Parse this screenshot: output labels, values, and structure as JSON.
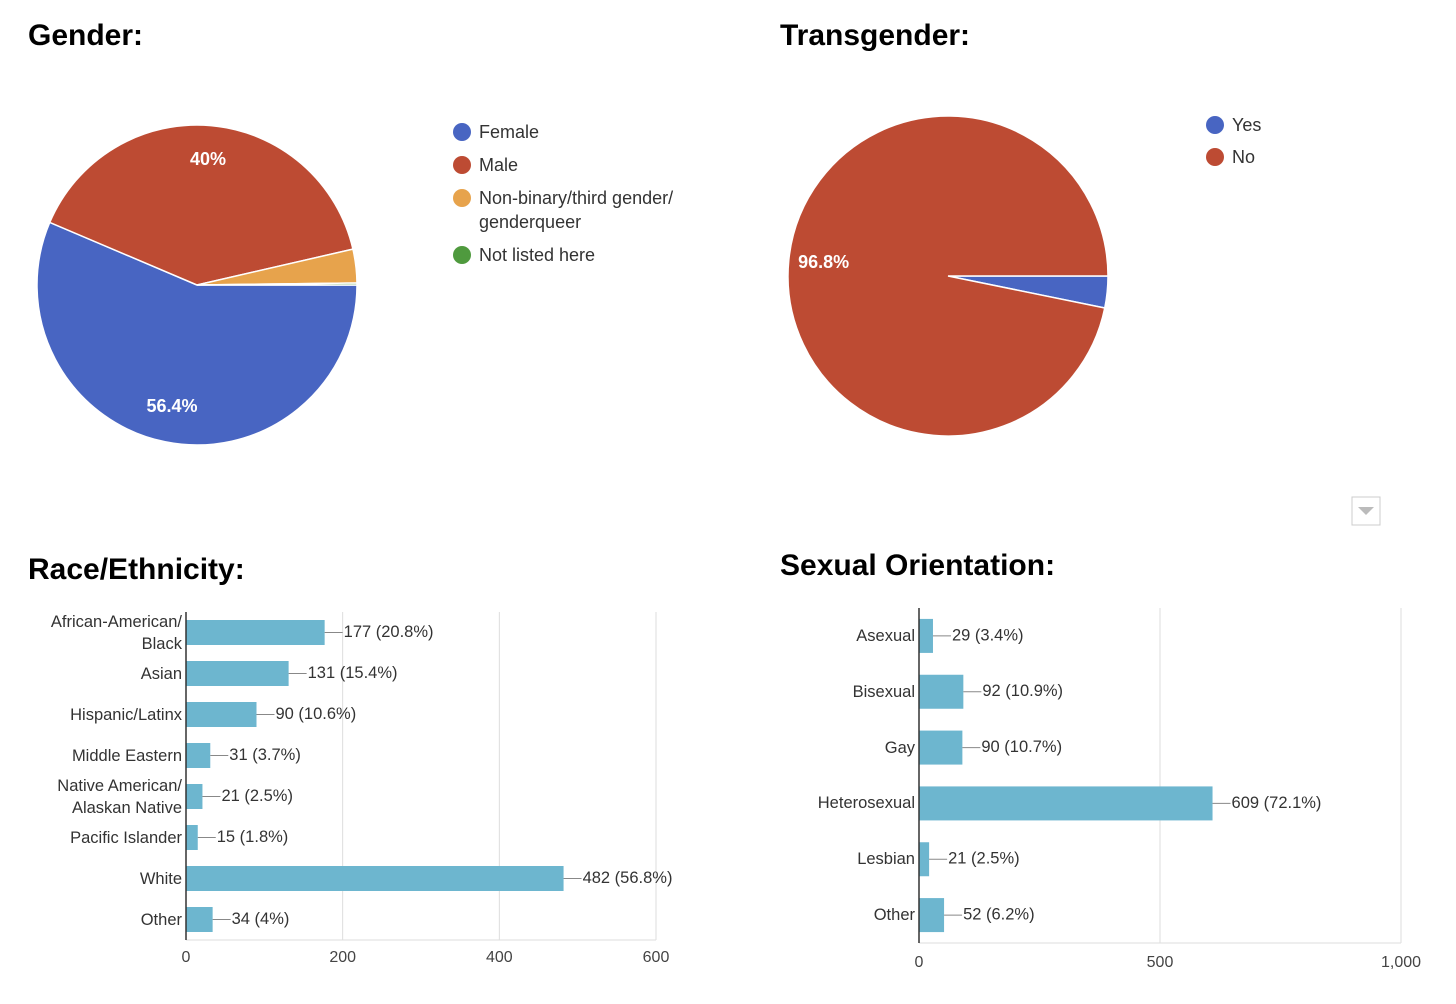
{
  "chart_data": [
    {
      "type": "pie",
      "title": "Gender:",
      "categories": [
        "Female",
        "Male",
        "Non-binary/third gender/ genderqueer",
        "Not listed here"
      ],
      "values": [
        56.4,
        40,
        3.4,
        0.2
      ],
      "value_labels": [
        "56.4%",
        "40%",
        null,
        null
      ],
      "colors": [
        "#4865c2",
        "#bd4b33",
        "#e7a34c",
        "#4f9a3e"
      ]
    },
    {
      "type": "pie",
      "title": "Transgender:",
      "categories": [
        "Yes",
        "No"
      ],
      "values": [
        3.2,
        96.8
      ],
      "value_labels": [
        null,
        "96.8%"
      ],
      "colors": [
        "#4865c2",
        "#bd4b33"
      ]
    },
    {
      "type": "bar",
      "title": "Race/Ethnicity:",
      "categories": [
        "African-American/ Black",
        "Asian",
        "Hispanic/Latinx",
        "Middle Eastern",
        "Native American/ Alaskan Native",
        "Pacific Islander",
        "White",
        "Other"
      ],
      "values": [
        177,
        131,
        90,
        31,
        21,
        15,
        482,
        34
      ],
      "value_labels": [
        "177 (20.8%)",
        "131 (15.4%)",
        "90 (10.6%)",
        "31 (3.7%)",
        "21 (2.5%)",
        "15 (1.8%)",
        "482 (56.8%)",
        "34 (4%)"
      ],
      "color": "#6db6cf",
      "xlim": [
        0,
        600
      ],
      "xticks": [
        0,
        200,
        400,
        600
      ],
      "grid": true
    },
    {
      "type": "bar",
      "title": "Sexual Orientation:",
      "categories": [
        "Asexual",
        "Bisexual",
        "Gay",
        "Heterosexual",
        "Lesbian",
        "Other"
      ],
      "values": [
        29,
        92,
        90,
        609,
        21,
        52
      ],
      "value_labels": [
        "29 (3.4%)",
        "92 (10.9%)",
        "90 (10.7%)",
        "609 (72.1%)",
        "21 (2.5%)",
        "52 (6.2%)"
      ],
      "color": "#6db6cf",
      "xlim": [
        0,
        1000
      ],
      "xticks": [
        0,
        500,
        {
          "value": 1000,
          "label": "1,000"
        }
      ],
      "grid": true
    }
  ]
}
